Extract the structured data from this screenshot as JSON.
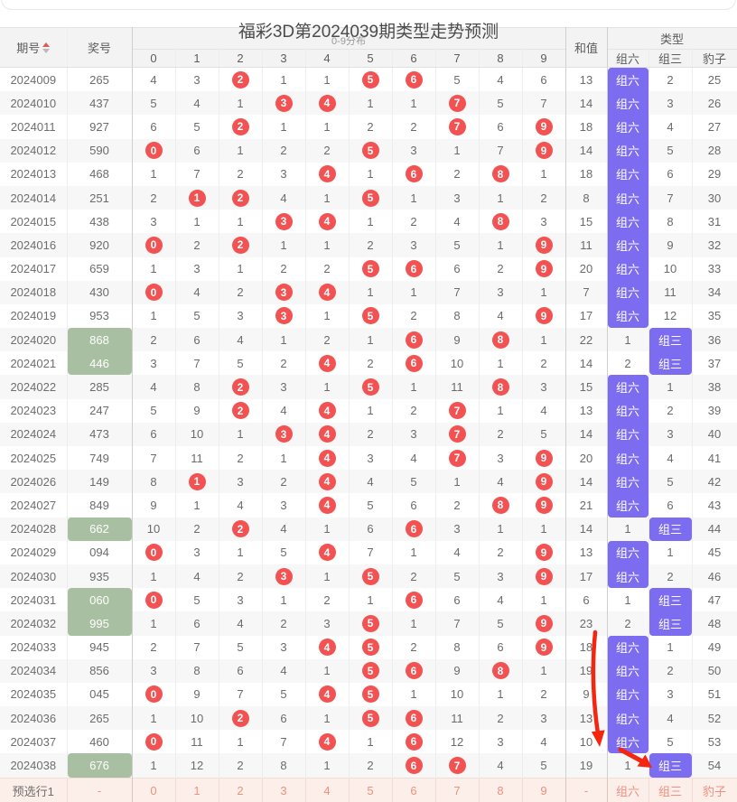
{
  "title": "福彩3D第2024039期类型走势预测",
  "colors": {
    "hit_ball": "#f25251",
    "type_highlight": "#7b6cf0",
    "number_highlight": "#a9bfa2",
    "preselect_row_bg": "#fcefe9",
    "preselect_text": "#ef9080",
    "annotation_arrow": "#f5260f"
  },
  "table": {
    "header": {
      "issue": "期号",
      "number": "奖号",
      "dist": "0-9分布",
      "digits": [
        "0",
        "1",
        "2",
        "3",
        "4",
        "5",
        "6",
        "7",
        "8",
        "9"
      ],
      "sum": "和值",
      "type": "类型",
      "type_cols": [
        "组六",
        "组三",
        "豹子"
      ]
    },
    "rows": [
      {
        "issue": "2024009",
        "num": "265",
        "green": false,
        "d": [
          "4",
          "3",
          "2",
          "1",
          "1",
          "5",
          "6",
          "5",
          "4",
          "6"
        ],
        "hits": [
          2,
          5,
          6
        ],
        "sum": "13",
        "liu": "组六",
        "liu_hl": true,
        "san": "2",
        "san_hl": false,
        "bao": "25"
      },
      {
        "issue": "2024010",
        "num": "437",
        "green": false,
        "d": [
          "5",
          "4",
          "1",
          "3",
          "4",
          "1",
          "1",
          "7",
          "5",
          "7"
        ],
        "hits": [
          3,
          4,
          7
        ],
        "sum": "14",
        "liu": "组六",
        "liu_hl": true,
        "san": "3",
        "san_hl": false,
        "bao": "26"
      },
      {
        "issue": "2024011",
        "num": "927",
        "green": false,
        "d": [
          "6",
          "5",
          "2",
          "1",
          "1",
          "2",
          "2",
          "7",
          "6",
          "9"
        ],
        "hits": [
          2,
          7,
          9
        ],
        "sum": "18",
        "liu": "组六",
        "liu_hl": true,
        "san": "4",
        "san_hl": false,
        "bao": "27"
      },
      {
        "issue": "2024012",
        "num": "590",
        "green": false,
        "d": [
          "0",
          "6",
          "1",
          "2",
          "2",
          "5",
          "3",
          "1",
          "7",
          "9"
        ],
        "hits": [
          0,
          5,
          9
        ],
        "sum": "14",
        "liu": "组六",
        "liu_hl": true,
        "san": "5",
        "san_hl": false,
        "bao": "28"
      },
      {
        "issue": "2024013",
        "num": "468",
        "green": false,
        "d": [
          "1",
          "7",
          "2",
          "3",
          "4",
          "1",
          "6",
          "2",
          "8",
          "1"
        ],
        "hits": [
          4,
          6,
          8
        ],
        "sum": "18",
        "liu": "组六",
        "liu_hl": true,
        "san": "6",
        "san_hl": false,
        "bao": "29"
      },
      {
        "issue": "2024014",
        "num": "251",
        "green": false,
        "d": [
          "2",
          "1",
          "2",
          "4",
          "1",
          "5",
          "1",
          "3",
          "1",
          "2"
        ],
        "hits": [
          1,
          2,
          5
        ],
        "sum": "8",
        "liu": "组六",
        "liu_hl": true,
        "san": "7",
        "san_hl": false,
        "bao": "30"
      },
      {
        "issue": "2024015",
        "num": "438",
        "green": false,
        "d": [
          "3",
          "1",
          "1",
          "3",
          "4",
          "1",
          "2",
          "4",
          "8",
          "3"
        ],
        "hits": [
          3,
          4,
          8
        ],
        "sum": "15",
        "liu": "组六",
        "liu_hl": true,
        "san": "8",
        "san_hl": false,
        "bao": "31"
      },
      {
        "issue": "2024016",
        "num": "920",
        "green": false,
        "d": [
          "0",
          "2",
          "2",
          "1",
          "1",
          "2",
          "3",
          "5",
          "1",
          "9"
        ],
        "hits": [
          0,
          2,
          9
        ],
        "sum": "11",
        "liu": "组六",
        "liu_hl": true,
        "san": "9",
        "san_hl": false,
        "bao": "32"
      },
      {
        "issue": "2024017",
        "num": "659",
        "green": false,
        "d": [
          "1",
          "3",
          "1",
          "2",
          "2",
          "5",
          "6",
          "6",
          "2",
          "9"
        ],
        "hits": [
          5,
          6,
          9
        ],
        "sum": "20",
        "liu": "组六",
        "liu_hl": true,
        "san": "10",
        "san_hl": false,
        "bao": "33"
      },
      {
        "issue": "2024018",
        "num": "430",
        "green": false,
        "d": [
          "0",
          "4",
          "2",
          "3",
          "4",
          "1",
          "1",
          "7",
          "3",
          "1"
        ],
        "hits": [
          0,
          3,
          4
        ],
        "sum": "7",
        "liu": "组六",
        "liu_hl": true,
        "san": "11",
        "san_hl": false,
        "bao": "34"
      },
      {
        "issue": "2024019",
        "num": "953",
        "green": false,
        "d": [
          "1",
          "5",
          "3",
          "3",
          "1",
          "5",
          "2",
          "8",
          "4",
          "9"
        ],
        "hits": [
          3,
          5,
          9
        ],
        "sum": "17",
        "liu": "组六",
        "liu_hl": true,
        "san": "12",
        "san_hl": false,
        "bao": "35"
      },
      {
        "issue": "2024020",
        "num": "868",
        "green": true,
        "d": [
          "2",
          "6",
          "4",
          "1",
          "2",
          "1",
          "6",
          "9",
          "8",
          "1"
        ],
        "hits": [
          6,
          8
        ],
        "sum": "22",
        "liu": "1",
        "liu_hl": false,
        "san": "组三",
        "san_hl": true,
        "bao": "36"
      },
      {
        "issue": "2024021",
        "num": "446",
        "green": true,
        "d": [
          "3",
          "7",
          "5",
          "2",
          "4",
          "2",
          "6",
          "10",
          "1",
          "2"
        ],
        "hits": [
          4,
          6
        ],
        "sum": "14",
        "liu": "2",
        "liu_hl": false,
        "san": "组三",
        "san_hl": true,
        "bao": "37"
      },
      {
        "issue": "2024022",
        "num": "285",
        "green": false,
        "d": [
          "4",
          "8",
          "2",
          "3",
          "1",
          "5",
          "1",
          "11",
          "8",
          "3"
        ],
        "hits": [
          2,
          5,
          8
        ],
        "sum": "15",
        "liu": "组六",
        "liu_hl": true,
        "san": "1",
        "san_hl": false,
        "bao": "38"
      },
      {
        "issue": "2024023",
        "num": "247",
        "green": false,
        "d": [
          "5",
          "9",
          "2",
          "4",
          "4",
          "1",
          "2",
          "7",
          "1",
          "4"
        ],
        "hits": [
          2,
          4,
          7
        ],
        "sum": "13",
        "liu": "组六",
        "liu_hl": true,
        "san": "2",
        "san_hl": false,
        "bao": "39"
      },
      {
        "issue": "2024024",
        "num": "473",
        "green": false,
        "d": [
          "6",
          "10",
          "1",
          "3",
          "4",
          "2",
          "3",
          "7",
          "2",
          "5"
        ],
        "hits": [
          3,
          4,
          7
        ],
        "sum": "14",
        "liu": "组六",
        "liu_hl": true,
        "san": "3",
        "san_hl": false,
        "bao": "40"
      },
      {
        "issue": "2024025",
        "num": "749",
        "green": false,
        "d": [
          "7",
          "11",
          "2",
          "1",
          "4",
          "3",
          "4",
          "7",
          "3",
          "9"
        ],
        "hits": [
          4,
          7,
          9
        ],
        "sum": "20",
        "liu": "组六",
        "liu_hl": true,
        "san": "4",
        "san_hl": false,
        "bao": "41"
      },
      {
        "issue": "2024026",
        "num": "149",
        "green": false,
        "d": [
          "8",
          "1",
          "3",
          "2",
          "4",
          "4",
          "5",
          "1",
          "4",
          "9"
        ],
        "hits": [
          1,
          4,
          9
        ],
        "sum": "14",
        "liu": "组六",
        "liu_hl": true,
        "san": "5",
        "san_hl": false,
        "bao": "42"
      },
      {
        "issue": "2024027",
        "num": "849",
        "green": false,
        "d": [
          "9",
          "1",
          "4",
          "3",
          "4",
          "5",
          "6",
          "2",
          "8",
          "9"
        ],
        "hits": [
          4,
          8,
          9
        ],
        "sum": "21",
        "liu": "组六",
        "liu_hl": true,
        "san": "6",
        "san_hl": false,
        "bao": "43"
      },
      {
        "issue": "2024028",
        "num": "662",
        "green": true,
        "d": [
          "10",
          "2",
          "2",
          "4",
          "1",
          "6",
          "6",
          "3",
          "1",
          "1"
        ],
        "hits": [
          2,
          6
        ],
        "sum": "14",
        "liu": "1",
        "liu_hl": false,
        "san": "组三",
        "san_hl": true,
        "bao": "44"
      },
      {
        "issue": "2024029",
        "num": "094",
        "green": false,
        "d": [
          "0",
          "3",
          "1",
          "5",
          "4",
          "7",
          "1",
          "4",
          "2",
          "9"
        ],
        "hits": [
          0,
          4,
          9
        ],
        "sum": "13",
        "liu": "组六",
        "liu_hl": true,
        "san": "1",
        "san_hl": false,
        "bao": "45"
      },
      {
        "issue": "2024030",
        "num": "935",
        "green": false,
        "d": [
          "1",
          "4",
          "2",
          "3",
          "1",
          "5",
          "2",
          "5",
          "3",
          "9"
        ],
        "hits": [
          3,
          5,
          9
        ],
        "sum": "17",
        "liu": "组六",
        "liu_hl": true,
        "san": "2",
        "san_hl": false,
        "bao": "46"
      },
      {
        "issue": "2024031",
        "num": "060",
        "green": true,
        "d": [
          "0",
          "5",
          "3",
          "1",
          "2",
          "1",
          "6",
          "6",
          "4",
          "1"
        ],
        "hits": [
          0,
          6
        ],
        "sum": "6",
        "liu": "1",
        "liu_hl": false,
        "san": "组三",
        "san_hl": true,
        "bao": "47"
      },
      {
        "issue": "2024032",
        "num": "995",
        "green": true,
        "d": [
          "1",
          "6",
          "4",
          "2",
          "3",
          "5",
          "1",
          "7",
          "5",
          "9"
        ],
        "hits": [
          5,
          9
        ],
        "sum": "23",
        "liu": "2",
        "liu_hl": false,
        "san": "组三",
        "san_hl": true,
        "bao": "48"
      },
      {
        "issue": "2024033",
        "num": "945",
        "green": false,
        "d": [
          "2",
          "7",
          "5",
          "3",
          "4",
          "5",
          "2",
          "8",
          "6",
          "9"
        ],
        "hits": [
          4,
          5,
          9
        ],
        "sum": "18",
        "liu": "组六",
        "liu_hl": true,
        "san": "1",
        "san_hl": false,
        "bao": "49"
      },
      {
        "issue": "2024034",
        "num": "856",
        "green": false,
        "d": [
          "3",
          "8",
          "6",
          "4",
          "1",
          "5",
          "6",
          "9",
          "8",
          "1"
        ],
        "hits": [
          5,
          6,
          8
        ],
        "sum": "19",
        "liu": "组六",
        "liu_hl": true,
        "san": "2",
        "san_hl": false,
        "bao": "50"
      },
      {
        "issue": "2024035",
        "num": "045",
        "green": false,
        "d": [
          "0",
          "9",
          "7",
          "5",
          "4",
          "5",
          "1",
          "10",
          "1",
          "2"
        ],
        "hits": [
          0,
          4,
          5
        ],
        "sum": "9",
        "liu": "组六",
        "liu_hl": true,
        "san": "3",
        "san_hl": false,
        "bao": "51"
      },
      {
        "issue": "2024036",
        "num": "265",
        "green": false,
        "d": [
          "1",
          "10",
          "2",
          "6",
          "1",
          "5",
          "6",
          "11",
          "2",
          "3"
        ],
        "hits": [
          2,
          5,
          6
        ],
        "sum": "13",
        "liu": "组六",
        "liu_hl": true,
        "san": "4",
        "san_hl": false,
        "bao": "52"
      },
      {
        "issue": "2024037",
        "num": "460",
        "green": false,
        "d": [
          "0",
          "11",
          "1",
          "7",
          "4",
          "1",
          "6",
          "12",
          "3",
          "4"
        ],
        "hits": [
          0,
          4,
          6
        ],
        "sum": "10",
        "liu": "组六",
        "liu_hl": true,
        "san": "5",
        "san_hl": false,
        "bao": "53"
      },
      {
        "issue": "2024038",
        "num": "676",
        "green": true,
        "d": [
          "1",
          "12",
          "2",
          "8",
          "1",
          "2",
          "6",
          "7",
          "4",
          "5"
        ],
        "hits": [
          6,
          7
        ],
        "sum": "19",
        "liu": "1",
        "liu_hl": false,
        "san": "组三",
        "san_hl": true,
        "bao": "54"
      }
    ],
    "footer": {
      "issue": "预选行1",
      "num": "-",
      "digits": [
        "0",
        "1",
        "2",
        "3",
        "4",
        "5",
        "6",
        "7",
        "8",
        "9"
      ],
      "sum": "-",
      "type_cols": [
        "组六",
        "组三",
        "豹子"
      ]
    }
  }
}
